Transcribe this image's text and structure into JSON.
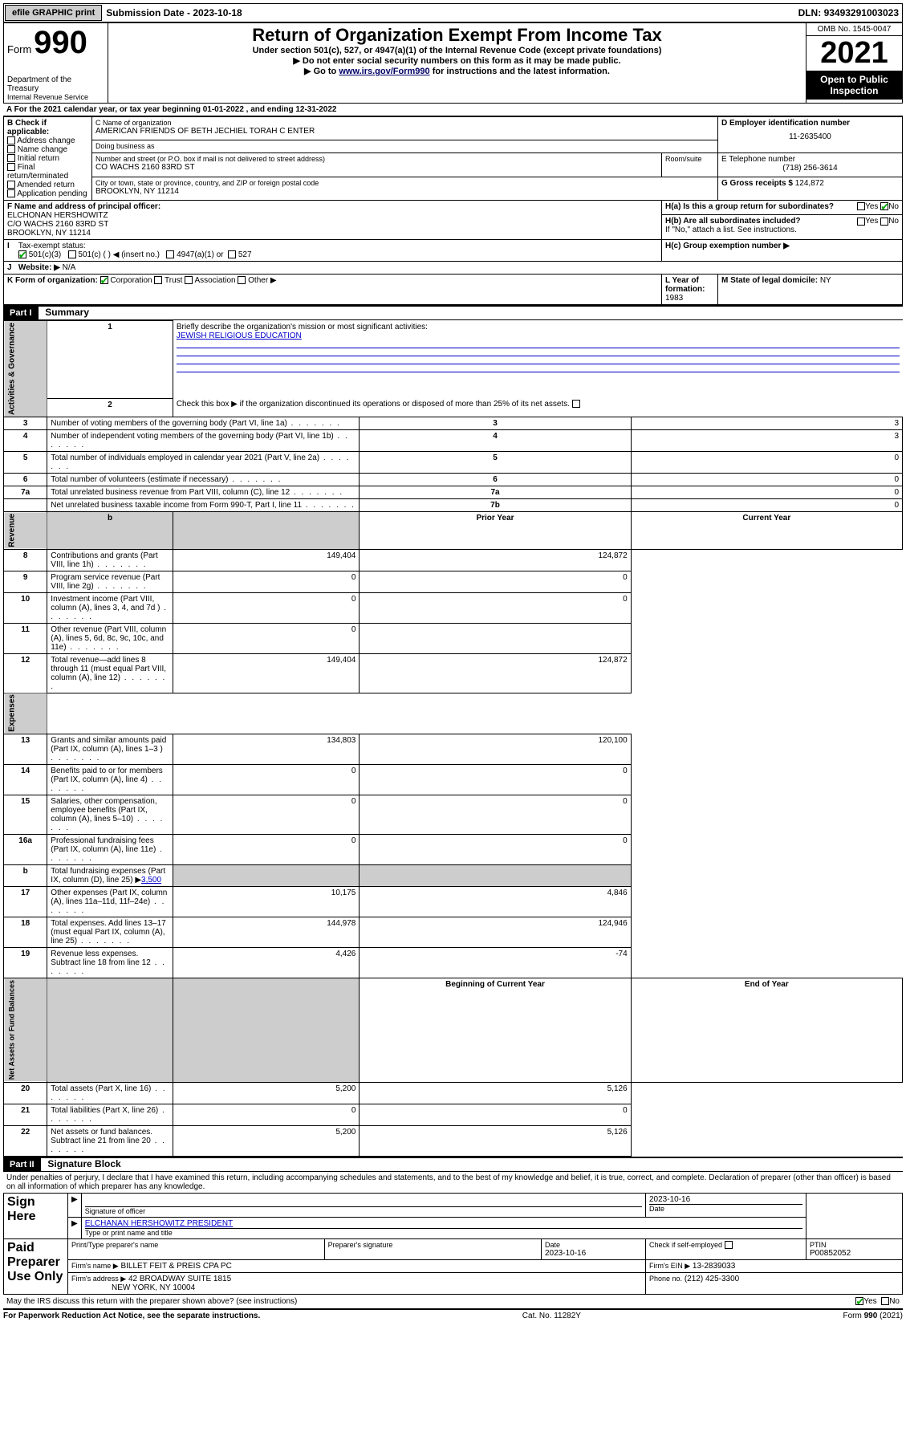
{
  "top_bar": {
    "efile_btn": "efile GRAPHIC print",
    "sub_date_label": "Submission Date - ",
    "sub_date_value": "2023-10-18",
    "dln_label": "DLN: ",
    "dln_value": "93493291003023"
  },
  "header": {
    "form_prefix": "Form",
    "form_number": "990",
    "dept": "Department of the Treasury",
    "irs": "Internal Revenue Service",
    "title": "Return of Organization Exempt From Income Tax",
    "subtitle": "Under section 501(c), 527, or 4947(a)(1) of the Internal Revenue Code (except private foundations)",
    "line1": "▶ Do not enter social security numbers on this form as it may be made public.",
    "line2_pre": "▶ Go to ",
    "line2_link": "www.irs.gov/Form990",
    "line2_post": " for instructions and the latest information.",
    "omb": "OMB No. 1545-0047",
    "year": "2021",
    "open1": "Open to Public",
    "open2": "Inspection"
  },
  "A": {
    "text": "For the 2021 calendar year, or tax year beginning 01-01-2022   , and ending 12-31-2022"
  },
  "B": {
    "hdr": "B Check if applicable:",
    "opts": [
      "Address change",
      "Name change",
      "Initial return",
      "Final return/terminated",
      "Amended return",
      "Application pending"
    ]
  },
  "C": {
    "name_label": "C Name of organization",
    "name": "AMERICAN FRIENDS OF BETH JECHIEL TORAH C ENTER",
    "dba_label": "Doing business as",
    "dba": "",
    "street_label": "Number and street (or P.O. box if mail is not delivered to street address)",
    "room_label": "Room/suite",
    "street": "CO WACHS 2160 83RD ST",
    "city_label": "City or town, state or province, country, and ZIP or foreign postal code",
    "city": "BROOKLYN, NY  11214"
  },
  "D": {
    "label": "D Employer identification number",
    "value": "11-2635400"
  },
  "E": {
    "label": "E Telephone number",
    "value": "(718) 256-3614"
  },
  "G": {
    "label": "G Gross receipts $",
    "value": "124,872"
  },
  "F": {
    "label": "F  Name and address of principal officer:",
    "name": "ELCHONAN HERSHOWITZ",
    "addr1": "C/O WACHS 2160 83RD ST",
    "addr2": "BROOKLYN, NY  11214"
  },
  "H": {
    "a_label": "H(a)  Is this a group return for subordinates?",
    "yes": "Yes",
    "no": "No",
    "b_label": "H(b)  Are all subordinates included?",
    "b_note": "If \"No,\" attach a list. See instructions.",
    "c_label": "H(c)  Group exemption number ▶"
  },
  "I": {
    "label": "Tax-exempt status:",
    "opt1": "501(c)(3)",
    "opt2": "501(c) (   ) ◀ (insert no.)",
    "opt3": "4947(a)(1) or",
    "opt4": "527"
  },
  "J": {
    "label": "Website: ▶",
    "value": "N/A"
  },
  "K": {
    "label": "K Form of organization:",
    "opts": [
      "Corporation",
      "Trust",
      "Association",
      "Other ▶"
    ]
  },
  "L": {
    "label": "L Year of formation:",
    "value": "1983"
  },
  "M": {
    "label": "M State of legal domicile:",
    "value": "NY"
  },
  "part1": {
    "hdr": "Part I",
    "title": "Summary",
    "line1_label": "Briefly describe the organization's mission or most significant activities:",
    "line1_value": "JEWISH RELIGIOUS EDUCATION",
    "line2": "Check this box ▶       if the organization discontinued its operations or disposed of more than 25% of its net assets.",
    "rows_simple": [
      {
        "n": "3",
        "t": "Number of voting members of the governing body (Part VI, line 1a)",
        "e": "3",
        "v": "3"
      },
      {
        "n": "4",
        "t": "Number of independent voting members of the governing body (Part VI, line 1b)",
        "e": "4",
        "v": "3"
      },
      {
        "n": "5",
        "t": "Total number of individuals employed in calendar year 2021 (Part V, line 2a)",
        "e": "5",
        "v": "0"
      },
      {
        "n": "6",
        "t": "Total number of volunteers (estimate if necessary)",
        "e": "6",
        "v": "0"
      },
      {
        "n": "7a",
        "t": "Total unrelated business revenue from Part VIII, column (C), line 12",
        "e": "7a",
        "v": "0"
      },
      {
        "n": "",
        "t": "Net unrelated business taxable income from Form 990-T, Part I, line 11",
        "e": "7b",
        "v": "0"
      }
    ],
    "col_b": "b",
    "col_prior": "Prior Year",
    "col_curr": "Current Year",
    "rev_rows": [
      {
        "n": "8",
        "t": "Contributions and grants (Part VIII, line 1h)",
        "p": "149,404",
        "c": "124,872"
      },
      {
        "n": "9",
        "t": "Program service revenue (Part VIII, line 2g)",
        "p": "0",
        "c": "0"
      },
      {
        "n": "10",
        "t": "Investment income (Part VIII, column (A), lines 3, 4, and 7d )",
        "p": "0",
        "c": "0"
      },
      {
        "n": "11",
        "t": "Other revenue (Part VIII, column (A), lines 5, 6d, 8c, 9c, 10c, and 11e)",
        "p": "0",
        "c": ""
      },
      {
        "n": "12",
        "t": "Total revenue—add lines 8 through 11 (must equal Part VIII, column (A), line 12)",
        "p": "149,404",
        "c": "124,872"
      }
    ],
    "exp_rows": [
      {
        "n": "13",
        "t": "Grants and similar amounts paid (Part IX, column (A), lines 1–3 )",
        "p": "134,803",
        "c": "120,100"
      },
      {
        "n": "14",
        "t": "Benefits paid to or for members (Part IX, column (A), line 4)",
        "p": "0",
        "c": "0"
      },
      {
        "n": "15",
        "t": "Salaries, other compensation, employee benefits (Part IX, column (A), lines 5–10)",
        "p": "0",
        "c": "0"
      },
      {
        "n": "16a",
        "t": "Professional fundraising fees (Part IX, column (A), line 11e)",
        "p": "0",
        "c": "0"
      }
    ],
    "line_b": {
      "n": "b",
      "t": "Total fundraising expenses (Part IX, column (D), line 25) ▶",
      "v": "3,500"
    },
    "exp_rows2": [
      {
        "n": "17",
        "t": "Other expenses (Part IX, column (A), lines 11a–11d, 11f–24e)",
        "p": "10,175",
        "c": "4,846"
      },
      {
        "n": "18",
        "t": "Total expenses. Add lines 13–17 (must equal Part IX, column (A), line 25)",
        "p": "144,978",
        "c": "124,946"
      },
      {
        "n": "19",
        "t": "Revenue less expenses. Subtract line 18 from line 12",
        "p": "4,426",
        "c": "-74"
      }
    ],
    "col_boy": "Beginning of Current Year",
    "col_eoy": "End of Year",
    "na_rows": [
      {
        "n": "20",
        "t": "Total assets (Part X, line 16)",
        "p": "5,200",
        "c": "5,126"
      },
      {
        "n": "21",
        "t": "Total liabilities (Part X, line 26)",
        "p": "0",
        "c": "0"
      },
      {
        "n": "22",
        "t": "Net assets or fund balances. Subtract line 21 from line 20",
        "p": "5,200",
        "c": "5,126"
      }
    ],
    "side_gov": "Activities & Governance",
    "side_rev": "Revenue",
    "side_exp": "Expenses",
    "side_na": "Net Assets or Fund Balances"
  },
  "part2": {
    "hdr": "Part II",
    "title": "Signature Block",
    "decl": "Under penalties of perjury, I declare that I have examined this return, including accompanying schedules and statements, and to the best of my knowledge and belief, it is true, correct, and complete. Declaration of preparer (other than officer) is based on all information of which preparer has any knowledge.",
    "sign_here": "Sign Here",
    "sig_officer": "Signature of officer",
    "sig_date": "Date",
    "sig_date_val": "2023-10-16",
    "officer_name": "ELCHANAN HERSHOWITZ  PRESIDENT",
    "officer_type": "Type or print name and title",
    "paid": "Paid Preparer Use Only",
    "prep_name_label": "Print/Type preparer's name",
    "prep_sig_label": "Preparer's signature",
    "prep_date_label": "Date",
    "prep_date": "2023-10-16",
    "prep_check": "Check       if self-employed",
    "ptin_label": "PTIN",
    "ptin": "P00852052",
    "firm_name_label": "Firm's name     ▶",
    "firm_name": "BILLET FEIT & PREIS CPA PC",
    "firm_ein_label": "Firm's EIN ▶",
    "firm_ein": "13-2839033",
    "firm_addr_label": "Firm's address ▶",
    "firm_addr1": "42 BROADWAY SUITE 1815",
    "firm_addr2": "NEW YORK, NY  10004",
    "phone_label": "Phone no.",
    "phone": "(212) 425-3300",
    "discuss": "May the IRS discuss this return with the preparer shown above? (see instructions)",
    "yes": "Yes",
    "no": "No"
  },
  "footer": {
    "left": "For Paperwork Reduction Act Notice, see the separate instructions.",
    "mid": "Cat. No. 11282Y",
    "right": "Form 990 (2021)"
  }
}
